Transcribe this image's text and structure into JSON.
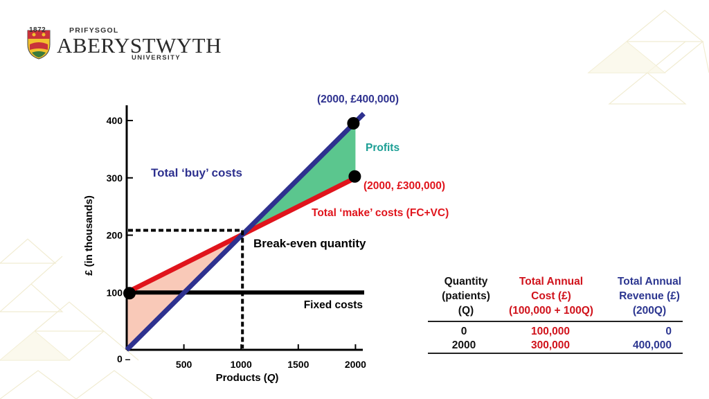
{
  "logo": {
    "year": "1872",
    "line1": "PRIFYSGOL",
    "line2": "ABERYSTWYTH",
    "line3": "UNIVERSITY"
  },
  "chart_data": {
    "type": "line",
    "xlabel": "Products (Q)",
    "ylabel": "£ (in thousands)",
    "x_ticks": [
      500,
      1000,
      1500,
      2000
    ],
    "y_ticks": [
      100,
      200,
      300,
      400
    ],
    "origin_label": "0 –",
    "xlim": [
      0,
      2050
    ],
    "ylim": [
      0,
      440
    ],
    "series": [
      {
        "name": "Total ‘buy’ costs",
        "color": "#2e318f",
        "x": [
          0,
          2000
        ],
        "y": [
          0,
          400
        ]
      },
      {
        "name": "Total ‘make’ costs (FC+VC)",
        "color": "#e0141c",
        "x": [
          0,
          2000
        ],
        "y": [
          100,
          300
        ]
      },
      {
        "name": "Fixed costs",
        "color": "#000000",
        "x": [
          0,
          2000
        ],
        "y": [
          100,
          100
        ]
      }
    ],
    "break_even": {
      "x": 1000,
      "y": 200,
      "label": "Break-even quantity"
    },
    "shaded_regions": [
      {
        "label": "Profits",
        "color": "#5bc68e",
        "x_from": 1000,
        "x_to": 2000
      },
      {
        "label": "",
        "color": "#f9c9b8",
        "x_from": 0,
        "x_to": 1000
      }
    ],
    "points": [
      {
        "x": 0,
        "y": 100
      },
      {
        "x": 2000,
        "y": 400,
        "label": "(2000, £400,000)"
      },
      {
        "x": 2000,
        "y": 300,
        "label": "(2000, £300,000)"
      }
    ],
    "annotations": {
      "buy": "Total ‘buy’ costs",
      "make": "Total ‘make’ costs (FC+VC)",
      "fixed": "Fixed costs",
      "profits": "Profits",
      "break_even": "Break-even quantity"
    }
  },
  "table": {
    "headers": [
      [
        "Quantity",
        "(patients)",
        "(Q)"
      ],
      [
        "Total Annual",
        "Cost (£)",
        "(100,000 + 100Q)"
      ],
      [
        "Total Annual",
        "Revenue (£)",
        "(200Q)"
      ]
    ],
    "rows": [
      [
        "0",
        "100,000",
        "0"
      ],
      [
        "2000",
        "300,000",
        "400,000"
      ]
    ]
  },
  "colors": {
    "buy": "#2e318f",
    "make": "#e0141c",
    "profits_text": "#1a9e94",
    "profits_fill": "#5bc68e",
    "loss_fill": "#f9c9b8",
    "table_cost": "#d0121b",
    "table_revenue": "#2c3690"
  }
}
